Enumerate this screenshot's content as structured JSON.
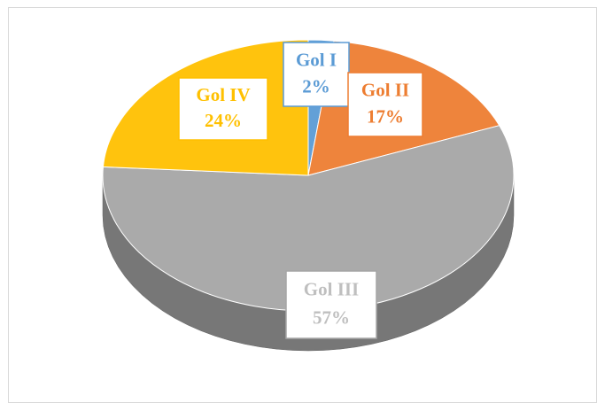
{
  "chart_data": {
    "type": "pie3d",
    "categories": [
      "Gol I",
      "Gol II",
      "Gol III",
      "Gol IV"
    ],
    "values": [
      2,
      17,
      57,
      24
    ],
    "value_labels": [
      "2%",
      "17%",
      "57%",
      "24%"
    ],
    "colors": [
      "#5b9bd5",
      "#ed7d31",
      "#a5a5a5",
      "#ffc000"
    ]
  }
}
